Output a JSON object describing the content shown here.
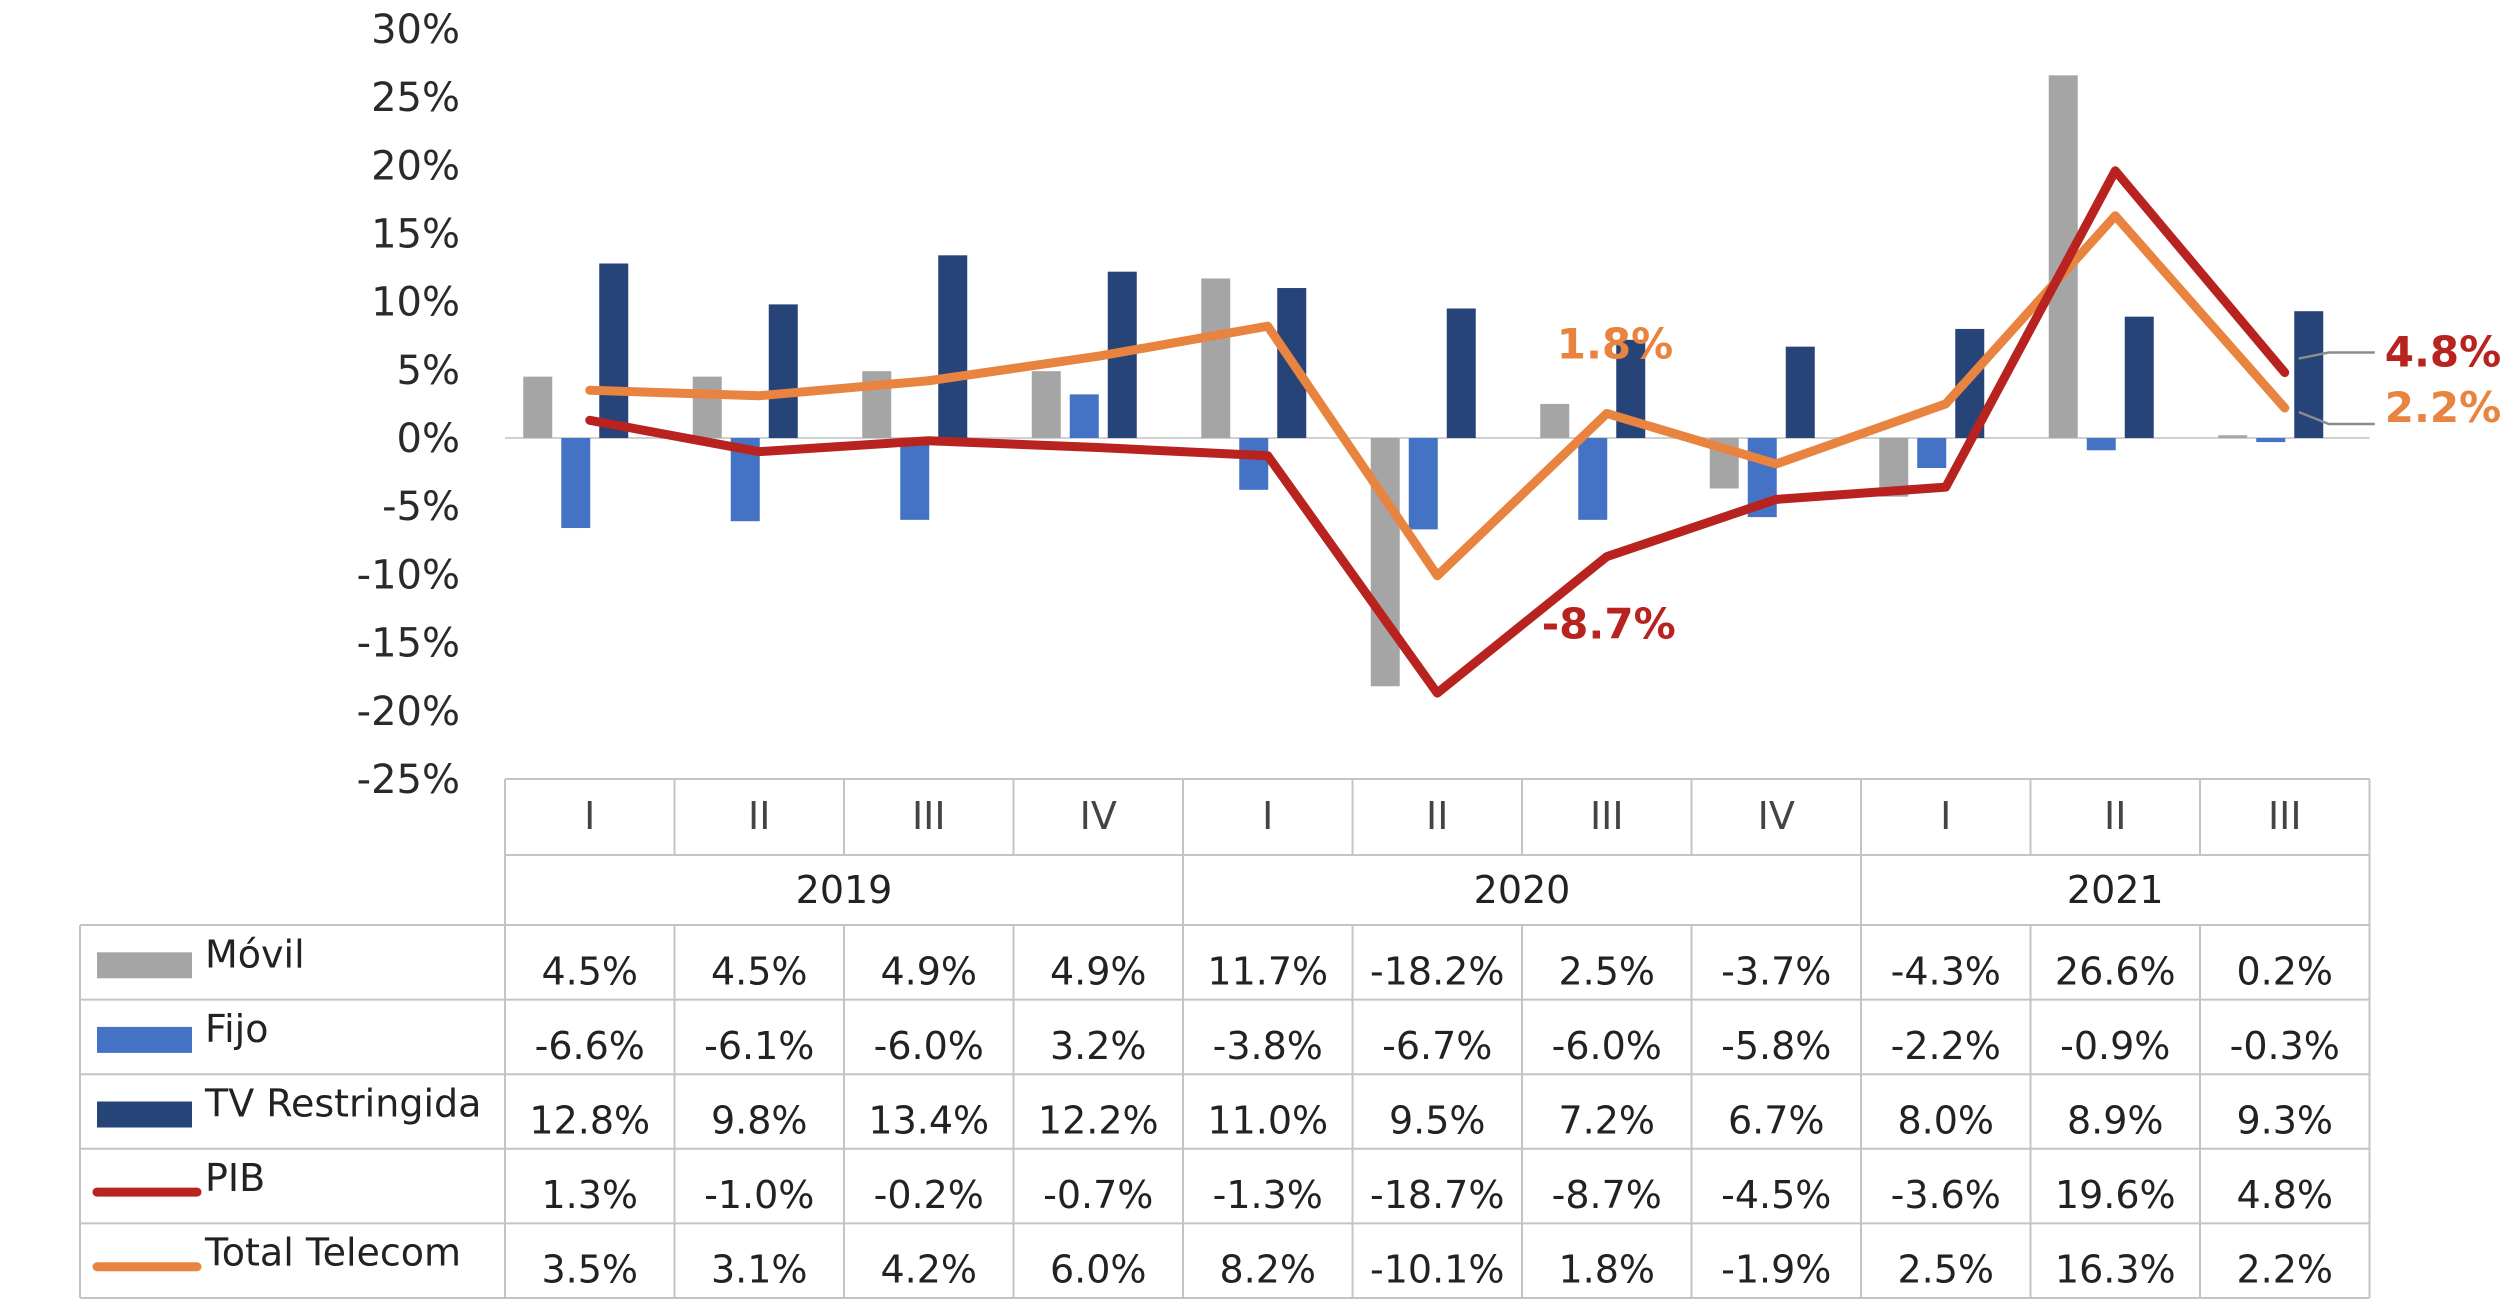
{
  "chart_data": {
    "type": "bar",
    "title": "",
    "categories": [
      "I",
      "II",
      "III",
      "IV",
      "I",
      "II",
      "III",
      "IV",
      "I",
      "II",
      "III"
    ],
    "years": [
      {
        "label": "2019",
        "span": 4
      },
      {
        "label": "2020",
        "span": 4
      },
      {
        "label": "2021",
        "span": 3
      }
    ],
    "ylim": [
      -25,
      30
    ],
    "yticks": [
      30,
      25,
      20,
      15,
      10,
      5,
      0,
      -5,
      -10,
      -15,
      -20,
      -25
    ],
    "ytick_labels": [
      "30%",
      "25%",
      "20%",
      "15%",
      "10%",
      "5%",
      "0%",
      "-5%",
      "-10%",
      "-15%",
      "-20%",
      "-25%"
    ],
    "series": [
      {
        "name": "Móvil",
        "kind": "bar",
        "color": "#a5a5a5",
        "values": [
          4.5,
          4.5,
          4.9,
          4.9,
          11.7,
          -18.2,
          2.5,
          -3.7,
          -4.3,
          26.6,
          0.2
        ],
        "labels": [
          "4.5%",
          "4.5%",
          "4.9%",
          "4.9%",
          "11.7%",
          "-18.2%",
          "2.5%",
          "-3.7%",
          "-4.3%",
          "26.6%",
          "0.2%"
        ]
      },
      {
        "name": "Fijo",
        "kind": "bar",
        "color": "#4472c4",
        "values": [
          -6.6,
          -6.1,
          -6.0,
          3.2,
          -3.8,
          -6.7,
          -6.0,
          -5.8,
          -2.2,
          -0.9,
          -0.3
        ],
        "labels": [
          "-6.6%",
          "-6.1%",
          "-6.0%",
          "3.2%",
          "-3.8%",
          "-6.7%",
          "-6.0%",
          "-5.8%",
          "-2.2%",
          "-0.9%",
          "-0.3%"
        ]
      },
      {
        "name": "TV Restringida",
        "kind": "bar",
        "color": "#264478",
        "values": [
          12.8,
          9.8,
          13.4,
          12.2,
          11.0,
          9.5,
          7.2,
          6.7,
          8.0,
          8.9,
          9.3
        ],
        "labels": [
          "12.8%",
          "9.8%",
          "13.4%",
          "12.2%",
          "11.0%",
          "9.5%",
          "7.2%",
          "6.7%",
          "8.0%",
          "8.9%",
          "9.3%"
        ]
      },
      {
        "name": "PIB",
        "kind": "line",
        "color": "#b8231f",
        "values": [
          1.3,
          -1.0,
          -0.2,
          -0.7,
          -1.3,
          -18.7,
          -8.7,
          -4.5,
          -3.6,
          19.6,
          4.8
        ],
        "labels": [
          "1.3%",
          "-1.0%",
          "-0.2%",
          "-0.7%",
          "-1.3%",
          "-18.7%",
          "-8.7%",
          "-4.5%",
          "-3.6%",
          "19.6%",
          "4.8%"
        ]
      },
      {
        "name": "Total Telecom",
        "kind": "line",
        "color": "#e8843f",
        "values": [
          3.5,
          3.1,
          4.2,
          6.0,
          8.2,
          -10.1,
          1.8,
          -1.9,
          2.5,
          16.3,
          2.2
        ],
        "labels": [
          "3.5%",
          "3.1%",
          "4.2%",
          "6.0%",
          "8.2%",
          "-10.1%",
          "1.8%",
          "-1.9%",
          "2.5%",
          "16.3%",
          "2.2%"
        ]
      }
    ],
    "annotations": [
      {
        "text": "1.8%",
        "series": "Total Telecom",
        "index": 6,
        "color": "#e8843f"
      },
      {
        "text": "-8.7%",
        "series": "PIB",
        "index": 6,
        "color": "#b8231f"
      },
      {
        "text": "4.8%",
        "series": "PIB",
        "index": 10,
        "color": "#b8231f"
      },
      {
        "text": "2.2%",
        "series": "Total Telecom",
        "index": 10,
        "color": "#e8843f"
      }
    ]
  }
}
